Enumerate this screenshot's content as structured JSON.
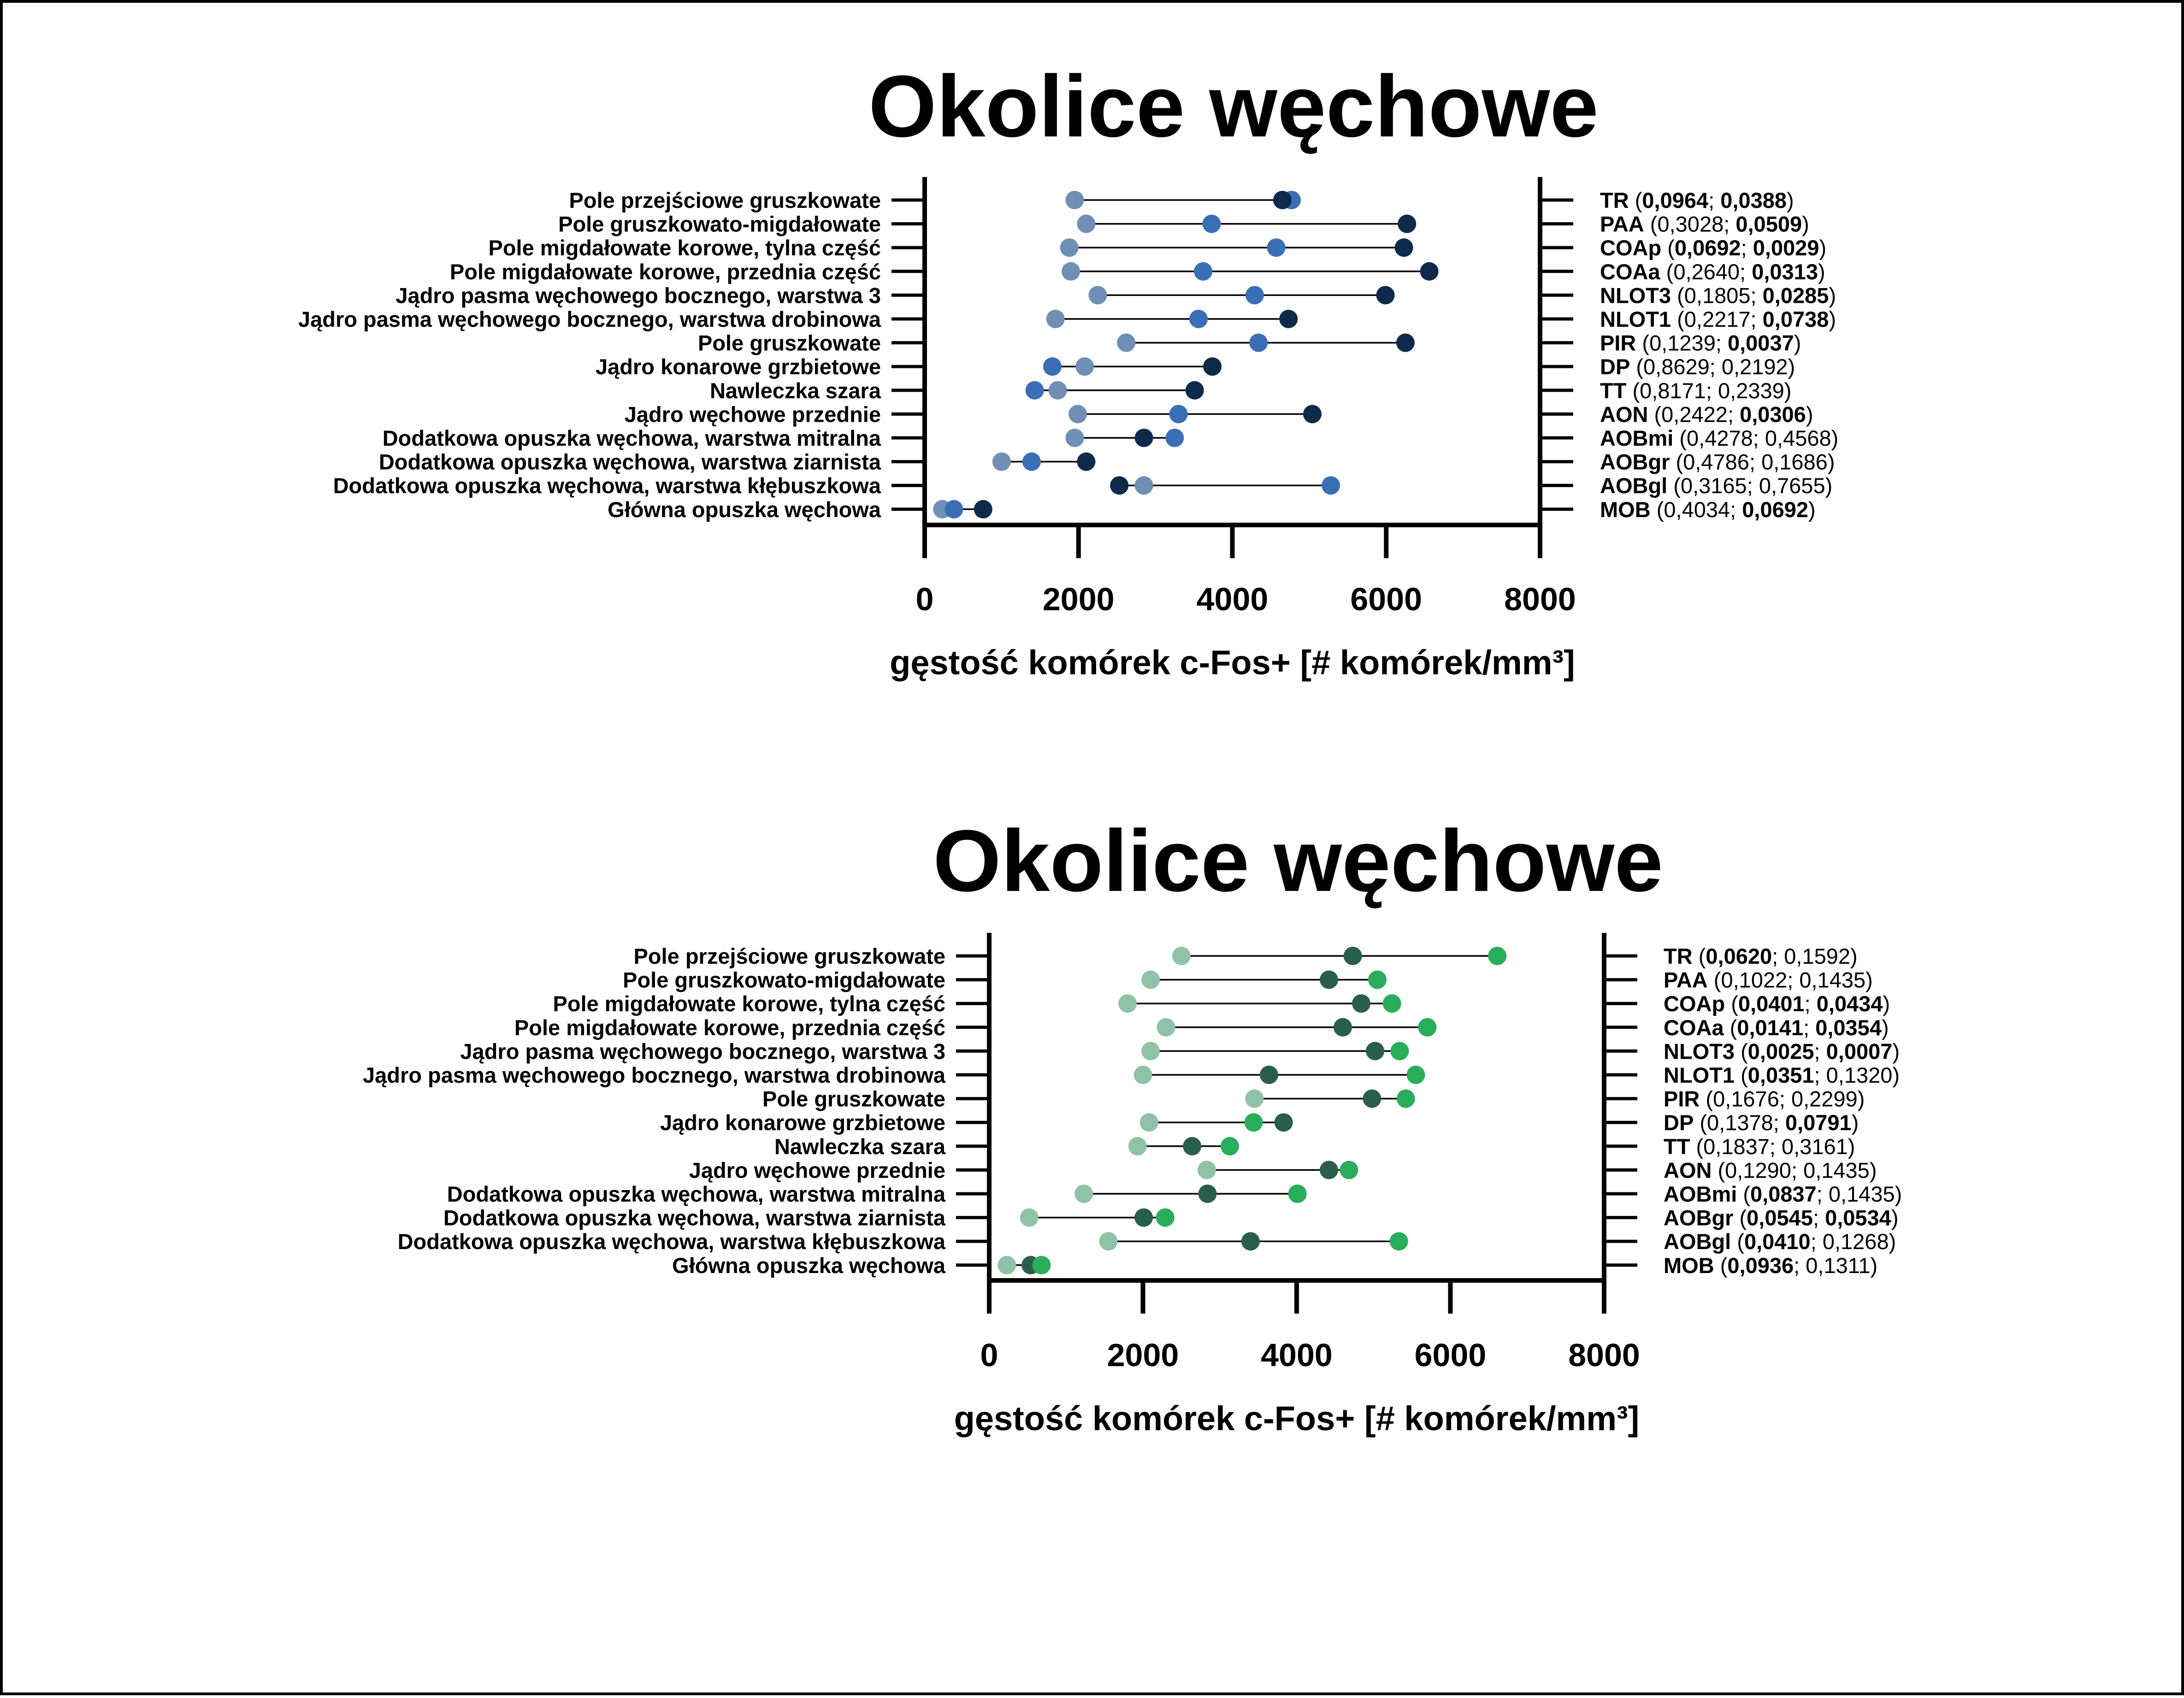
{
  "chart_data": [
    {
      "type": "dot-range",
      "title": "Okolice węchowe",
      "xlabel": "gęstość  komórek c-Fos+ [# komórek/mm³]",
      "xlim": [
        0,
        8000
      ],
      "xticks": [
        "0",
        "2000",
        "4000",
        "6000",
        "8000"
      ],
      "grid": false,
      "categories": [
        "Pole przejściowe gruszkowate",
        "Pole gruszkowato-migdałowate",
        "Pole migdałowate korowe, tylna część",
        "Pole migdałowate korowe, przednia część",
        "Jądro pasma węchowego bocznego, warstwa 3",
        "Jądro pasma węchowego bocznego, warstwa drobinowa",
        "Pole gruszkowate",
        "Jądro konarowe grzbietowe",
        "Nawleczka szara",
        "Jądro węchowe przednie",
        "Dodatkowa opuszka węchowa, warstwa mitralna",
        "Dodatkowa opuszka węchowa, warstwa ziarnista",
        "Dodatkowa opuszka węchowa, warstwa kłębuszkowa",
        "Główna opuszka węchowa"
      ],
      "series": [
        {
          "color": "#6f8fb4",
          "values": [
            1950,
            2100,
            1880,
            1900,
            2250,
            1700,
            2620,
            2080,
            1730,
            1990,
            1950,
            1000,
            2850,
            230
          ]
        },
        {
          "color": "#3a6fb5",
          "values": [
            4770,
            3730,
            4570,
            3620,
            4290,
            3560,
            4340,
            1660,
            1430,
            3300,
            3250,
            1390,
            5280,
            380
          ]
        },
        {
          "color": "#0d2a4a",
          "values": [
            4650,
            6270,
            6230,
            6560,
            5990,
            4730,
            6250,
            3740,
            3510,
            5040,
            2850,
            2100,
            2530,
            760
          ]
        }
      ],
      "right_labels": [
        {
          "abbr": "TR",
          "open": " (",
          "v1": "0,0964",
          "sep": "; ",
          "v2": "0,0388",
          "close": ")",
          "b1": true,
          "b2": true
        },
        {
          "abbr": "PAA",
          "open": " (",
          "v1": "0,3028",
          "sep": "; ",
          "v2": "0,0509",
          "close": ")",
          "b1": false,
          "b2": true
        },
        {
          "abbr": "COAp",
          "open": " (",
          "v1": "0,0692",
          "sep": "; ",
          "v2": "0,0029",
          "close": ")",
          "b1": true,
          "b2": true
        },
        {
          "abbr": "COAa",
          "open": " (",
          "v1": "0,2640",
          "sep": "; ",
          "v2": "0,0313",
          "close": ")",
          "b1": false,
          "b2": true
        },
        {
          "abbr": "NLOT3",
          "open": " (",
          "v1": "0,1805",
          "sep": "; ",
          "v2": "0,0285",
          "close": ")",
          "b1": false,
          "b2": true
        },
        {
          "abbr": "NLOT1",
          "open": " (",
          "v1": "0,2217",
          "sep": "; ",
          "v2": "0,0738",
          "close": ")",
          "b1": false,
          "b2": true
        },
        {
          "abbr": "PIR",
          "open": " (",
          "v1": "0,1239",
          "sep": "; ",
          "v2": "0,0037",
          "close": ")",
          "b1": false,
          "b2": true
        },
        {
          "abbr": "DP",
          "open": " (",
          "v1": "0,8629",
          "sep": "; ",
          "v2": "0,2192",
          "close": ")",
          "b1": false,
          "b2": false
        },
        {
          "abbr": "TT",
          "open": " (",
          "v1": "0,8171",
          "sep": "; ",
          "v2": "0,2339",
          "close": ")",
          "b1": false,
          "b2": false
        },
        {
          "abbr": "AON",
          "open": " (",
          "v1": "0,2422",
          "sep": "; ",
          "v2": "0,0306",
          "close": ")",
          "b1": false,
          "b2": true
        },
        {
          "abbr": "AOBmi",
          "open": " (",
          "v1": "0,4278",
          "sep": "; ",
          "v2": "0,4568",
          "close": ")",
          "b1": false,
          "b2": false
        },
        {
          "abbr": "AOBgr",
          "open": " (",
          "v1": "0,4786",
          "sep": "; ",
          "v2": "0,1686",
          "close": ")",
          "b1": false,
          "b2": false
        },
        {
          "abbr": "AOBgl",
          "open": " (",
          "v1": "0,3165",
          "sep": "; ",
          "v2": "0,7655",
          "close": ")",
          "b1": false,
          "b2": false
        },
        {
          "abbr": "MOB",
          "open": " (",
          "v1": "0,4034",
          "sep": "; ",
          "v2": "0,0692",
          "close": ")",
          "b1": false,
          "b2": true
        }
      ]
    },
    {
      "type": "dot-range",
      "title": "Okolice węchowe",
      "xlabel": "gęstość  komórek c-Fos+ [# komórek/mm³]",
      "xlim": [
        0,
        8000
      ],
      "xticks": [
        "0",
        "2000",
        "4000",
        "6000",
        "8000"
      ],
      "grid": false,
      "categories": [
        "Pole przejściowe gruszkowate",
        "Pole gruszkowato-migdałowate",
        "Pole migdałowate korowe, tylna część",
        "Pole migdałowate korowe, przednia część",
        "Jądro pasma węchowego bocznego, warstwa 3",
        "Jądro pasma węchowego bocznego, warstwa drobinowa",
        "Pole gruszkowate",
        "Jądro konarowe grzbietowe",
        "Nawleczka szara",
        "Jądro węchowe przednie",
        "Dodatkowa opuszka węchowa, warstwa mitralna",
        "Dodatkowa opuszka węchowa, warstwa ziarnista",
        "Dodatkowa opuszka węchowa, warstwa kłębuszkowa",
        "Główna opuszka węchowa"
      ],
      "series": [
        {
          "color": "#8fc2a6",
          "values": [
            2500,
            2100,
            1800,
            2300,
            2100,
            2000,
            3450,
            2080,
            1930,
            2830,
            1230,
            520,
            1550,
            230
          ]
        },
        {
          "color": "#2a5e4c",
          "values": [
            4730,
            4420,
            4840,
            4600,
            5020,
            3640,
            4980,
            3830,
            2640,
            4420,
            2840,
            2010,
            3400,
            540
          ]
        },
        {
          "color": "#29ad5a",
          "values": [
            6610,
            5050,
            5240,
            5700,
            5340,
            5550,
            5420,
            3440,
            3130,
            4680,
            4010,
            2290,
            5330,
            680
          ]
        }
      ],
      "right_labels": [
        {
          "abbr": "TR",
          "open": " (",
          "v1": "0,0620",
          "sep": "; ",
          "v2": "0,1592",
          "close": ")",
          "b1": true,
          "b2": false
        },
        {
          "abbr": "PAA",
          "open": " (",
          "v1": "0,1022",
          "sep": "; ",
          "v2": "0,1435",
          "close": ")",
          "b1": false,
          "b2": false
        },
        {
          "abbr": "COAp",
          "open": " (",
          "v1": "0,0401",
          "sep": "; ",
          "v2": "0,0434",
          "close": ")",
          "b1": true,
          "b2": true
        },
        {
          "abbr": "COAa",
          "open": " (",
          "v1": "0,0141",
          "sep": "; ",
          "v2": "0,0354",
          "close": ")",
          "b1": true,
          "b2": true
        },
        {
          "abbr": "NLOT3",
          "open": " (",
          "v1": "0,0025",
          "sep": "; ",
          "v2": "0,0007",
          "close": ")",
          "b1": true,
          "b2": true
        },
        {
          "abbr": "NLOT1",
          "open": " (",
          "v1": "0,0351",
          "sep": "; ",
          "v2": "0,1320",
          "close": ")",
          "b1": true,
          "b2": false
        },
        {
          "abbr": "PIR",
          "open": " (",
          "v1": "0,1676",
          "sep": "; ",
          "v2": "0,2299",
          "close": ")",
          "b1": false,
          "b2": false
        },
        {
          "abbr": "DP",
          "open": " (",
          "v1": "0,1378",
          "sep": "; ",
          "v2": "0,0791",
          "close": ")",
          "b1": false,
          "b2": true
        },
        {
          "abbr": "TT",
          "open": " (",
          "v1": "0,1837",
          "sep": "; ",
          "v2": "0,3161",
          "close": ")",
          "b1": false,
          "b2": false
        },
        {
          "abbr": "AON",
          "open": " (",
          "v1": "0,1290",
          "sep": "; ",
          "v2": "0,1435",
          "close": ")",
          "b1": false,
          "b2": false
        },
        {
          "abbr": "AOBmi",
          "open": " (",
          "v1": "0,0837",
          "sep": "; ",
          "v2": "0,1435",
          "close": ")",
          "b1": true,
          "b2": false
        },
        {
          "abbr": "AOBgr",
          "open": " (",
          "v1": "0,0545",
          "sep": "; ",
          "v2": "0,0534",
          "close": ")",
          "b1": true,
          "b2": true
        },
        {
          "abbr": "AOBgl",
          "open": " (",
          "v1": "0,0410",
          "sep": "; ",
          "v2": "0,1268",
          "close": ")",
          "b1": true,
          "b2": false
        },
        {
          "abbr": "MOB",
          "open": " (",
          "v1": "0,0936",
          "sep": "; ",
          "v2": "0,1311",
          "close": ")",
          "b1": true,
          "b2": false
        }
      ]
    }
  ]
}
